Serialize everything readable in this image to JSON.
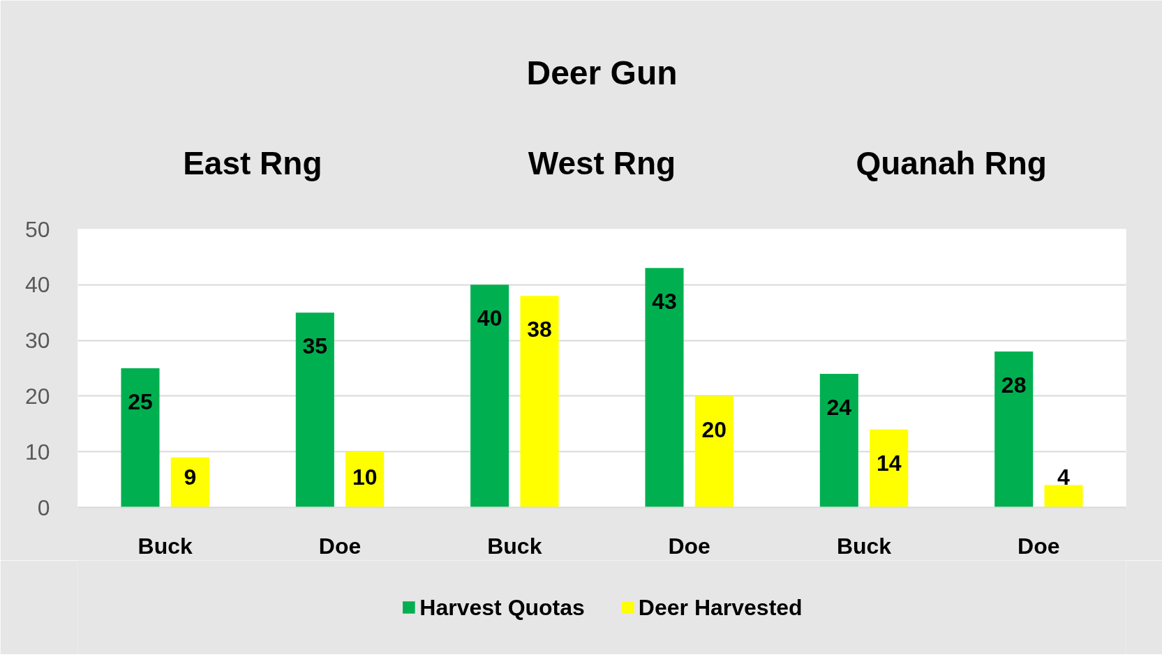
{
  "chart_data": {
    "type": "bar",
    "title": "Deer Gun",
    "annotations": [
      "East Rng",
      "West Rng",
      "Quanah Rng"
    ],
    "categories": [
      "Buck",
      "Doe",
      "Buck",
      "Doe",
      "Buck",
      "Doe"
    ],
    "series": [
      {
        "name": "Harvest Quotas",
        "color": "#00b050",
        "values": [
          25,
          35,
          40,
          43,
          24,
          28
        ]
      },
      {
        "name": "Deer Harvested",
        "color": "#ffff00",
        "values": [
          9,
          10,
          38,
          20,
          14,
          4
        ]
      }
    ],
    "ylim": [
      0,
      50
    ],
    "yticks": [
      0,
      10,
      20,
      30,
      40,
      50
    ],
    "grid": "y",
    "legend": "bottom",
    "data_labels": true
  }
}
